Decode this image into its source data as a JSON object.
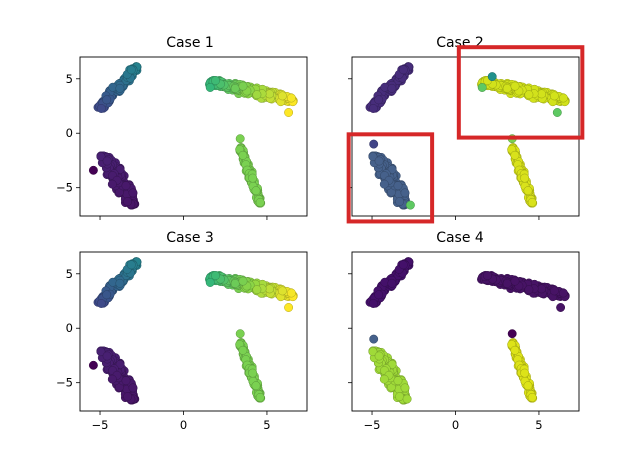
{
  "chart_data": {
    "type": "scatter",
    "layout": "2x2 grid, shared x and y axes",
    "xlim": [
      -6.2,
      7.4
    ],
    "ylim": [
      -7.6,
      7.0
    ],
    "xticks": [
      -5,
      0,
      5
    ],
    "yticks": [
      -5,
      0,
      5
    ],
    "colormap": "viridis",
    "grid": false,
    "legend": "none",
    "clusters": [
      {
        "id": "A",
        "shape": "elongated blob",
        "from": [
          -5.0,
          2.3
        ],
        "to": [
          -2.8,
          6.1
        ],
        "width": 0.9,
        "n": 140
      },
      {
        "id": "B",
        "shape": "wide blob",
        "from": [
          1.6,
          4.7
        ],
        "to": [
          6.6,
          3.0
        ],
        "width": 1.3,
        "n": 220
      },
      {
        "id": "C",
        "shape": "blob",
        "from": [
          -4.8,
          -2.0
        ],
        "to": [
          -3.0,
          -6.6
        ],
        "width": 1.4,
        "n": 180
      },
      {
        "id": "D",
        "shape": "thin streak",
        "from": [
          3.4,
          -1.3
        ],
        "to": [
          4.6,
          -6.5
        ],
        "width": 0.45,
        "n": 110
      }
    ],
    "panels": [
      {
        "title": "Case 1",
        "color_mode": "gradient",
        "colors": {
          "A": [
            "#3e4a89",
            "#31688e",
            "#26828e"
          ],
          "B": [
            "#35b779",
            "#90d743",
            "#fde725"
          ],
          "C": [
            "#482173",
            "#481567"
          ],
          "D": [
            "#7ad151"
          ]
        },
        "outliers": [
          {
            "x": -5.4,
            "y": -3.4,
            "color": "#440154"
          },
          {
            "x": 1.6,
            "y": 4.2,
            "color": "#35b779"
          },
          {
            "x": 6.3,
            "y": 1.9,
            "color": "#fde725"
          },
          {
            "x": 3.4,
            "y": -0.5,
            "color": "#7ad151"
          }
        ],
        "highlights": []
      },
      {
        "title": "Case 2",
        "color_mode": "uniform",
        "colors": {
          "A": [
            "#472d7b"
          ],
          "B": [
            "#d2e21b"
          ],
          "C": [
            "#46618b"
          ],
          "D": [
            "#d9e21b"
          ]
        },
        "outliers": [
          {
            "x": -4.9,
            "y": -1.0,
            "color": "#414487"
          },
          {
            "x": 1.6,
            "y": 4.2,
            "color": "#5ec962"
          },
          {
            "x": 6.1,
            "y": 1.9,
            "color": "#5ec962"
          },
          {
            "x": 3.4,
            "y": -0.5,
            "color": "#7ad151"
          },
          {
            "x": -2.7,
            "y": -6.6,
            "color": "#5ec962"
          },
          {
            "x": 2.2,
            "y": 5.2,
            "color": "#21918c"
          }
        ],
        "highlights": [
          {
            "x0": 0.2,
            "y0": -0.4,
            "x1": 7.6,
            "y1": 7.9
          },
          {
            "x0": -6.4,
            "y0": -8.1,
            "x1": -1.4,
            "y1": -0.1
          }
        ]
      },
      {
        "title": "Case 3",
        "color_mode": "gradient",
        "colors": {
          "A": [
            "#3e4a89",
            "#31688e",
            "#26828e"
          ],
          "B": [
            "#35b779",
            "#90d743",
            "#fde725"
          ],
          "C": [
            "#482173",
            "#481567"
          ],
          "D": [
            "#7ad151"
          ]
        },
        "outliers": [
          {
            "x": -5.4,
            "y": -3.4,
            "color": "#440154"
          },
          {
            "x": 1.6,
            "y": 4.2,
            "color": "#35b779"
          },
          {
            "x": 6.3,
            "y": 1.9,
            "color": "#fde725"
          },
          {
            "x": 3.4,
            "y": -0.5,
            "color": "#7ad151"
          }
        ],
        "highlights": []
      },
      {
        "title": "Case 4",
        "color_mode": "uniform",
        "colors": {
          "A": [
            "#44106a"
          ],
          "B": [
            "#471365"
          ],
          "C": [
            "#a0da39"
          ],
          "D": [
            "#dde318"
          ]
        },
        "outliers": [
          {
            "x": -4.9,
            "y": -1.0,
            "color": "#46618b"
          },
          {
            "x": 3.4,
            "y": -0.5,
            "color": "#440154"
          },
          {
            "x": 6.3,
            "y": 1.9,
            "color": "#471365"
          },
          {
            "x": -2.9,
            "y": -6.5,
            "color": "#a0da39"
          }
        ],
        "highlights": []
      }
    ]
  }
}
